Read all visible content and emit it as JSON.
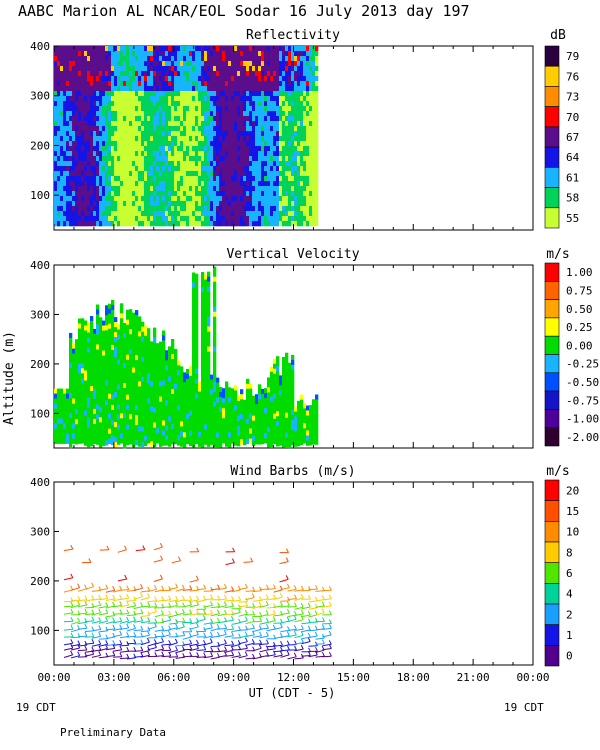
{
  "chart_data": {
    "title": "AABC Marion AL NCAR/EOL Sodar  16 July 2013 day 197",
    "x_axis": {
      "label": "UT  (CDT - 5)",
      "range_hours": [
        0,
        24
      ],
      "ticks": [
        "00:00",
        "03:00",
        "06:00",
        "09:00",
        "12:00",
        "15:00",
        "18:00",
        "21:00",
        "00:00"
      ],
      "corner_left": "19 CDT",
      "corner_right": "19 CDT"
    },
    "y_axis": {
      "label": "Altitude (m)",
      "range_m": [
        30,
        400
      ],
      "ticks": [
        100,
        200,
        300,
        400
      ]
    },
    "footer_note": "Preliminary Data",
    "panels": [
      {
        "type": "heatmap",
        "title": "Reflectivity",
        "unit": "dB",
        "data_hours": [
          0,
          13.2
        ],
        "data_altitude_m": [
          40,
          400
        ],
        "legend_labels": [
          "79",
          "76",
          "73",
          "70",
          "67",
          "64",
          "61",
          "58",
          "55"
        ],
        "colors": [
          "#2a0040",
          "#ffcc00",
          "#ff8c00",
          "#ff0000",
          "#5a0e8c",
          "#1414e6",
          "#19b4ff",
          "#00d25a",
          "#c8ff32"
        ]
      },
      {
        "type": "heatmap",
        "title": "Vertical Velocity",
        "unit": "m/s",
        "data_hours": [
          0,
          13.2
        ],
        "data_altitude_m": [
          40,
          400
        ],
        "legend_labels": [
          "1.00",
          "0.75",
          "0.50",
          "0.25",
          "0.00",
          "-0.25",
          "-0.50",
          "-0.75",
          "-1.00",
          "-2.00"
        ],
        "colors": [
          "#ff0000",
          "#ff6400",
          "#ffa500",
          "#ffff00",
          "#00dc00",
          "#19b4ff",
          "#0050ff",
          "#1414c8",
          "#50009a",
          "#300030"
        ]
      },
      {
        "type": "scatter",
        "title": "Wind Barbs (m/s)",
        "unit": "m/s",
        "data_hours": [
          0,
          13.5
        ],
        "data_altitude_m": [
          40,
          280
        ],
        "legend_labels": [
          "20",
          "15",
          "10",
          "8",
          "6",
          "4",
          "2",
          "1",
          "0"
        ],
        "colors": [
          "#ff0000",
          "#ff5000",
          "#ff8c00",
          "#ffcc00",
          "#50e600",
          "#00d29b",
          "#19a0ff",
          "#1414e6",
          "#50008c"
        ]
      }
    ]
  }
}
